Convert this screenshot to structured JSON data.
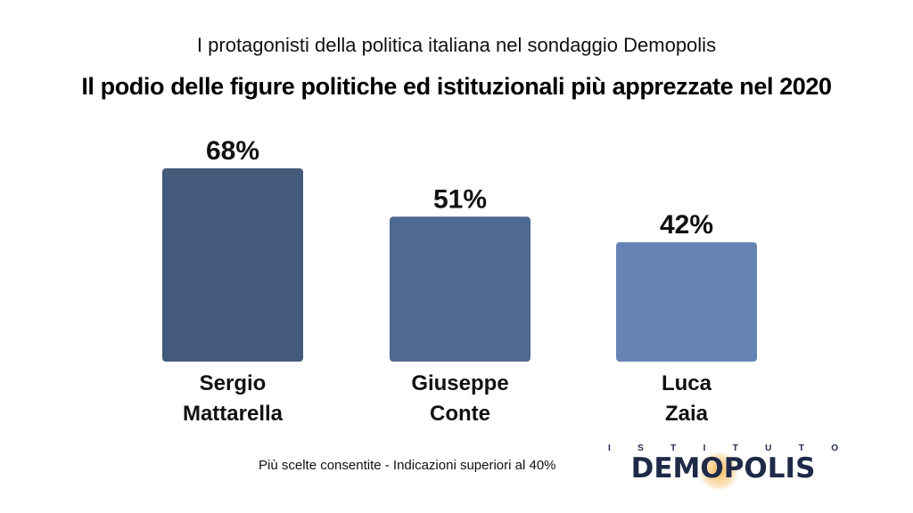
{
  "header": {
    "subtitle": "I protagonisti della politica italiana nel sondaggio Demopolis",
    "title": "Il podio delle figure politiche ed istituzionali più apprezzate nel 2020"
  },
  "chart_data": {
    "type": "bar",
    "title": "Il podio delle figure politiche ed istituzionali più apprezzate nel 2020",
    "subtitle": "I protagonisti della politica italiana nel sondaggio Demopolis",
    "categories": [
      [
        "Sergio",
        "Mattarella"
      ],
      [
        "Giuseppe",
        "Conte"
      ],
      [
        "Luca",
        "Zaia"
      ]
    ],
    "values": [
      68,
      51,
      42
    ],
    "value_labels": [
      "68%",
      "51%",
      "42%"
    ],
    "colors": [
      "#435a7b",
      "#4f6a91",
      "#6583b4"
    ],
    "unit": "%",
    "ylim": [
      0,
      68
    ],
    "grid": false,
    "legend": "none"
  },
  "footer": {
    "note": "Più scelte consentite - Indicazioni superiori al 40%",
    "logo_top_letters": [
      "I",
      "S",
      "T",
      "I",
      "T",
      "U",
      "T",
      "O"
    ],
    "logo_main": "DEMOPOLIS"
  }
}
